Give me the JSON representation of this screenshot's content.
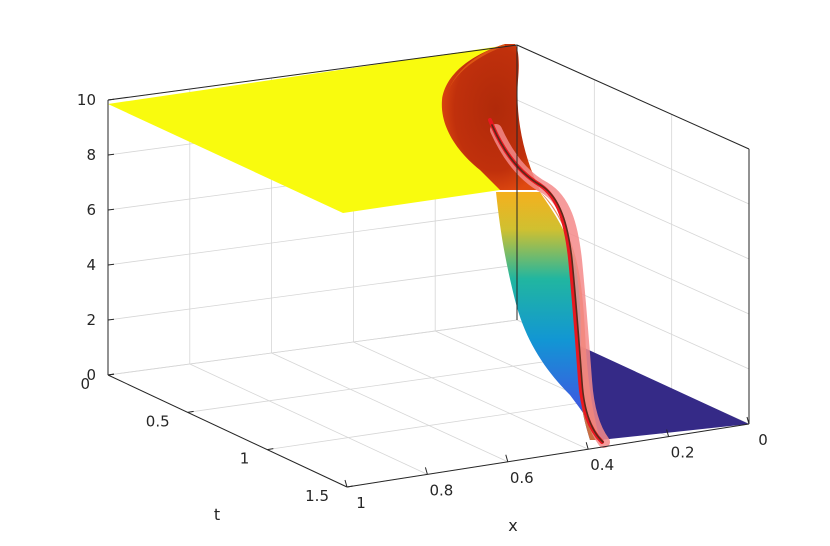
{
  "chart_data": {
    "type": "surface",
    "title": "",
    "xlabel": "x",
    "ylabel": "t",
    "zlabel": "",
    "xlim": [
      0,
      1
    ],
    "tlim": [
      0,
      1.5
    ],
    "zlim": [
      0,
      10
    ],
    "x_ticks": [
      "1",
      "0.8",
      "0.6",
      "0.4",
      "0.2",
      "0"
    ],
    "t_ticks": [
      "0",
      "0.5",
      "1",
      "1.5"
    ],
    "z_ticks": [
      "0",
      "2",
      "4",
      "6",
      "8",
      "10"
    ],
    "grid": true,
    "colormap": "parula",
    "colors": {
      "high": "#f9fb0e",
      "low": "#352a87",
      "mid": "#21b6a0",
      "dark_red": "#a52008",
      "red_curve": "#e81820",
      "pink_band": "#f48a8a",
      "dark_curve": "#5a2a1a"
    },
    "surface": {
      "plateau_value": 10,
      "base_value": 0,
      "front_x_at_t0": 0.5,
      "front_x_at_t1_5": 0.42
    },
    "curve": {
      "description_points": [
        {
          "x": 0.5,
          "t": 0.0,
          "u": 7.5
        },
        {
          "x": 0.47,
          "t": 0.3,
          "u": 5.5
        },
        {
          "x": 0.45,
          "t": 0.6,
          "u": 3.0
        },
        {
          "x": 0.43,
          "t": 1.0,
          "u": 1.0
        },
        {
          "x": 0.42,
          "t": 1.5,
          "u": 0.1
        }
      ]
    }
  }
}
